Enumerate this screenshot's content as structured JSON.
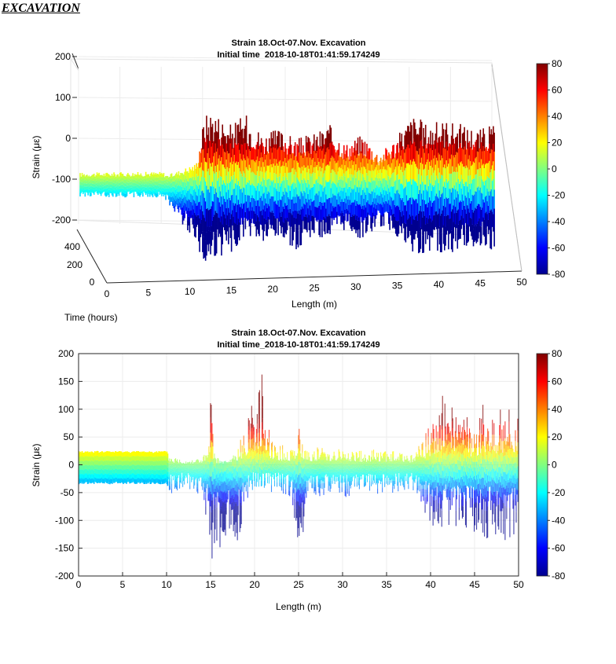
{
  "page": {
    "heading": "EXCAVATION"
  },
  "chart_data": [
    {
      "type": "surface3d",
      "title": "Strain 18.Oct-07.Nov. Excavation",
      "subtitle": "Initial time_2018-10-18T01:41:59.174249",
      "xlabel": "Length (m)",
      "ylabel": "Time (hours)",
      "zlabel": "Strain (με)",
      "x_ticks": [
        0,
        5,
        10,
        15,
        20,
        25,
        30,
        35,
        40,
        45,
        50
      ],
      "y_ticks": [
        0,
        200,
        400
      ],
      "z_ticks": [
        200,
        100,
        0,
        -100,
        -200
      ],
      "xlim": [
        0,
        50
      ],
      "ylim": [
        0,
        480
      ],
      "zlim": [
        -200,
        200
      ],
      "colorbar": {
        "min": -80,
        "max": 80,
        "ticks": [
          80,
          60,
          40,
          20,
          0,
          -20,
          -40,
          -60,
          -80
        ]
      },
      "profile": {
        "x": [
          0,
          10,
          10.5,
          12,
          14,
          15,
          16,
          18,
          20,
          22,
          24,
          26,
          28,
          30,
          32,
          34,
          36,
          38,
          40,
          42,
          44,
          46,
          48,
          50
        ],
        "z_max": [
          20,
          22,
          15,
          25,
          40,
          140,
          150,
          120,
          140,
          100,
          110,
          90,
          100,
          120,
          80,
          100,
          60,
          90,
          140,
          120,
          130,
          120,
          110,
          120
        ],
        "z_min": [
          -30,
          -32,
          -40,
          -80,
          -120,
          -190,
          -160,
          -150,
          -110,
          -130,
          -120,
          -140,
          -110,
          -120,
          -100,
          -120,
          -90,
          -110,
          -160,
          -140,
          -150,
          -140,
          -130,
          -140
        ]
      }
    },
    {
      "type": "line",
      "title": "Strain 18.Oct-07.Nov. Excavation",
      "subtitle": "Initial time_2018-10-18T01:41:59.174249",
      "xlabel": "Length (m)",
      "ylabel": "Strain (με)",
      "xlim": [
        0,
        50
      ],
      "ylim": [
        -200,
        200
      ],
      "x_ticks": [
        0,
        5,
        10,
        15,
        20,
        25,
        30,
        35,
        40,
        45,
        50
      ],
      "y_ticks": [
        200,
        150,
        100,
        50,
        0,
        -50,
        -100,
        -150,
        -200
      ],
      "colorbar": {
        "min": -80,
        "max": 80,
        "ticks": [
          80,
          60,
          40,
          20,
          0,
          -20,
          -40,
          -60,
          -80
        ]
      },
      "envelope": {
        "x": [
          0,
          10,
          10.3,
          11,
          12,
          13,
          14,
          14.8,
          15,
          15.5,
          16,
          17,
          18,
          18.8,
          19.2,
          19.6,
          20,
          21,
          21.8,
          22.5,
          24,
          25,
          25.6,
          26,
          28,
          30,
          32,
          34,
          36,
          38,
          38.5,
          39.5,
          40,
          41,
          42,
          43,
          44,
          45,
          46,
          47,
          48,
          49,
          50
        ],
        "max": [
          25,
          25,
          20,
          15,
          10,
          12,
          15,
          30,
          130,
          20,
          10,
          8,
          30,
          60,
          100,
          160,
          120,
          175,
          60,
          40,
          30,
          70,
          40,
          30,
          35,
          30,
          25,
          30,
          25,
          20,
          30,
          60,
          80,
          100,
          180,
          80,
          100,
          60,
          120,
          90,
          110,
          100,
          120
        ],
        "min": [
          -35,
          -35,
          -50,
          -55,
          -45,
          -50,
          -60,
          -120,
          -190,
          -160,
          -150,
          -130,
          -150,
          -90,
          -60,
          -50,
          -40,
          -45,
          -50,
          -45,
          -60,
          -140,
          -170,
          -60,
          -55,
          -60,
          -50,
          -55,
          -50,
          -45,
          -60,
          -90,
          -110,
          -120,
          -110,
          -120,
          -115,
          -130,
          -150,
          -125,
          -140,
          -145,
          -130
        ]
      }
    }
  ]
}
